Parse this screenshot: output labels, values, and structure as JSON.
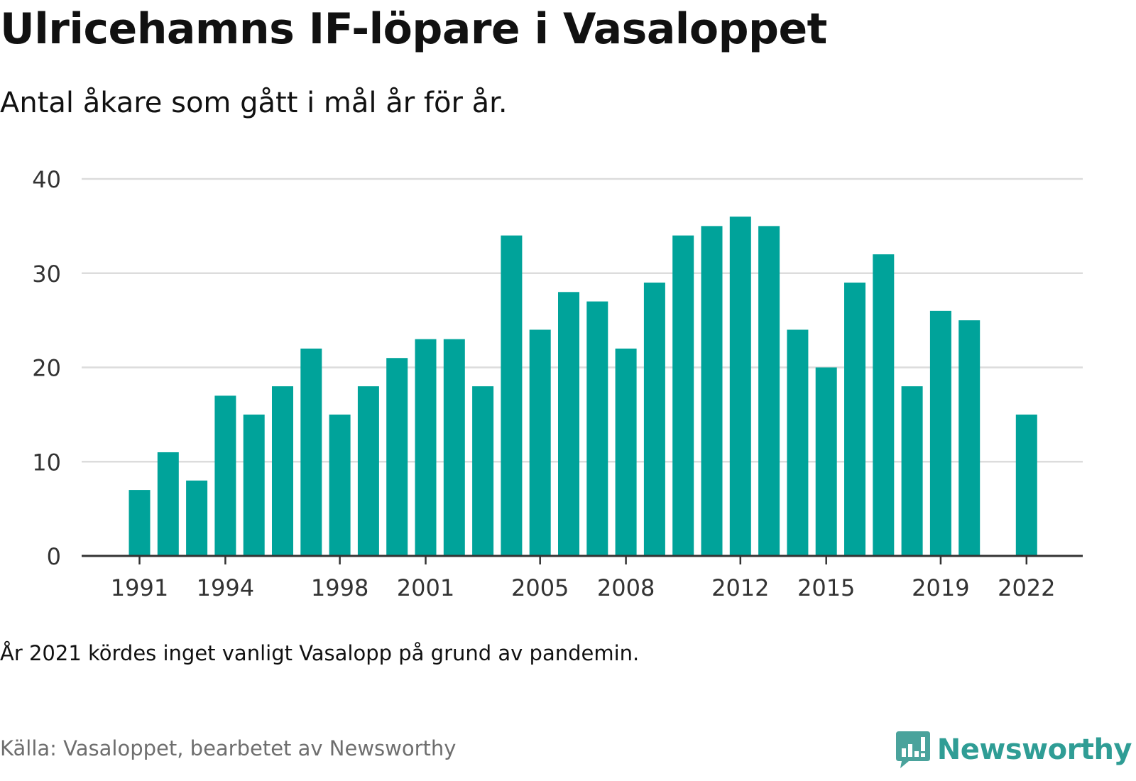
{
  "header": {
    "title": "Ulricehamns IF-löpare i Vasaloppet",
    "subtitle": "Antal åkare som gått i mål år för år."
  },
  "footer": {
    "note": "År 2021 kördes inget vanligt Vasalopp på grund av pandemin.",
    "source": "Källa: Vasaloppet, bearbetet av Newsworthy",
    "brand": "Newsworthy"
  },
  "colors": {
    "bar": "#00a39a",
    "grid": "#dcdcdc",
    "axis": "#333333",
    "brand": "#2f9d95"
  },
  "icons": {
    "logo": "newsworthy-logo-icon"
  },
  "chart_data": {
    "type": "bar",
    "title": "Ulricehamns IF-löpare i Vasaloppet",
    "subtitle": "Antal åkare som gått i mål år för år.",
    "xlabel": "",
    "ylabel": "",
    "categories": [
      1991,
      1992,
      1993,
      1994,
      1995,
      1996,
      1997,
      1998,
      1999,
      2000,
      2001,
      2002,
      2003,
      2004,
      2005,
      2006,
      2007,
      2008,
      2009,
      2010,
      2011,
      2012,
      2013,
      2014,
      2015,
      2016,
      2017,
      2018,
      2019,
      2020,
      2021,
      2022
    ],
    "values": [
      7,
      11,
      8,
      17,
      15,
      18,
      22,
      15,
      18,
      21,
      23,
      23,
      18,
      34,
      24,
      28,
      27,
      22,
      29,
      34,
      35,
      36,
      35,
      24,
      20,
      29,
      32,
      18,
      26,
      25,
      null,
      15
    ],
    "x_tick_labels": [
      "1991",
      "1994",
      "1998",
      "2001",
      "2005",
      "2008",
      "2012",
      "2015",
      "2019",
      "2022"
    ],
    "y_ticks": [
      0,
      10,
      20,
      30,
      40
    ],
    "ylim": [
      0,
      40
    ],
    "grid": true,
    "legend": "none"
  }
}
